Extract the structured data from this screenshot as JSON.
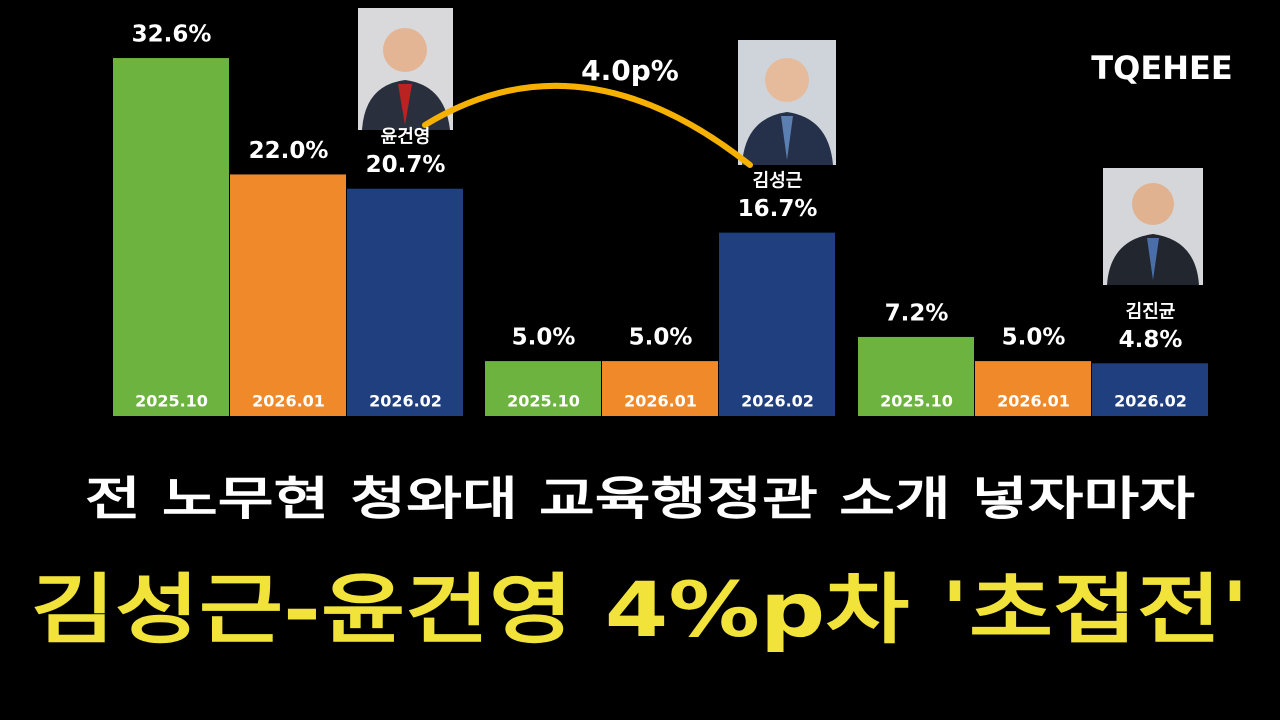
{
  "chart_data": [
    {
      "type": "bar",
      "categories": [
        "2025.10",
        "2026.01",
        "2026.02"
      ],
      "values": [
        32.6,
        22.0,
        20.7
      ],
      "value_labels": [
        "32.6%",
        "22.0%",
        "20.7%"
      ],
      "colors": [
        "#6db33f",
        "#f0892a",
        "#1f3f7f"
      ],
      "annotation": "윤건영"
    },
    {
      "type": "bar",
      "categories": [
        "2025.10",
        "2026.01",
        "2026.02"
      ],
      "values": [
        5.0,
        5.0,
        16.7
      ],
      "value_labels": [
        "5.0%",
        "5.0%",
        "16.7%"
      ],
      "colors": [
        "#6db33f",
        "#f0892a",
        "#1f3f7f"
      ],
      "annotation": "김성근"
    },
    {
      "type": "bar",
      "categories": [
        "2025.10",
        "2026.01",
        "2026.02"
      ],
      "values": [
        7.2,
        5.0,
        4.8
      ],
      "value_labels": [
        "7.2%",
        "5.0%",
        "4.8%"
      ],
      "colors": [
        "#6db33f",
        "#f0892a",
        "#1f3f7f"
      ],
      "annotation": "김진균"
    }
  ],
  "gap_annotation": "4.0p%",
  "logo": "TQEHEE",
  "headline": {
    "line1": "전 노무현 청와대 교육행정관 소개 넣자마자",
    "line2": "김성근-윤건영 4%p차 '초접전'"
  }
}
